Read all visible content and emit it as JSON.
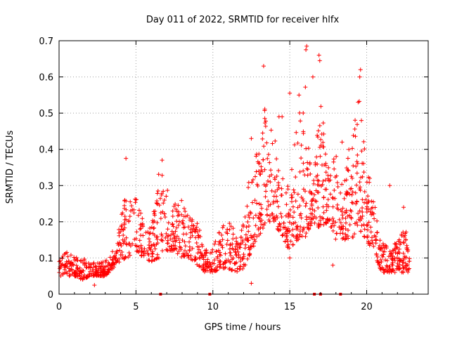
{
  "chart_data": {
    "type": "scatter",
    "title": "Day 011 of 2022, SRMTID for receiver hlfx",
    "xlabel": "GPS time / hours",
    "ylabel": "SRMTID / TECUs",
    "xlim": [
      0,
      24
    ],
    "ylim": [
      0,
      0.7
    ],
    "x_ticks": [
      0,
      5,
      10,
      15,
      20
    ],
    "x_tick_labels": [
      "0",
      "5",
      "10",
      "15",
      "20"
    ],
    "y_ticks": [
      0,
      0.1,
      0.2,
      0.3,
      0.4,
      0.5,
      0.6,
      0.7
    ],
    "y_tick_labels": [
      "0",
      "0.1",
      "0.2",
      "0.3",
      "0.4",
      "0.5",
      "0.6",
      "0.7"
    ],
    "grid": true,
    "marker": "plus",
    "color": "#ff0000",
    "zero_markers_x": [
      6.6,
      9.8,
      16.6,
      17.0,
      18.3
    ],
    "envelope": {
      "x": [
        0,
        0.5,
        1,
        1.5,
        2,
        2.5,
        3,
        3.5,
        4,
        4.3,
        4.6,
        5,
        5.5,
        6,
        6.5,
        7,
        7.5,
        8,
        8.5,
        9,
        9.5,
        10,
        10.5,
        11,
        11.5,
        12,
        12.5,
        13,
        13.5,
        14,
        14.5,
        15,
        15.5,
        16,
        16.5,
        17,
        17.5,
        18,
        18.5,
        19,
        19.5,
        20,
        20.5,
        21,
        21.5,
        22,
        22.5,
        22.8
      ],
      "low": [
        0.05,
        0.05,
        0.05,
        0.04,
        0.05,
        0.05,
        0.05,
        0.07,
        0.09,
        0.1,
        0.1,
        0.12,
        0.1,
        0.09,
        0.1,
        0.12,
        0.12,
        0.1,
        0.1,
        0.08,
        0.06,
        0.06,
        0.07,
        0.07,
        0.06,
        0.07,
        0.12,
        0.16,
        0.2,
        0.2,
        0.15,
        0.12,
        0.15,
        0.15,
        0.2,
        0.18,
        0.2,
        0.15,
        0.15,
        0.15,
        0.18,
        0.15,
        0.1,
        0.06,
        0.06,
        0.06,
        0.06,
        0.06
      ],
      "high": [
        0.09,
        0.12,
        0.11,
        0.1,
        0.09,
        0.09,
        0.09,
        0.12,
        0.2,
        0.3,
        0.26,
        0.28,
        0.2,
        0.18,
        0.36,
        0.3,
        0.25,
        0.26,
        0.22,
        0.2,
        0.14,
        0.13,
        0.18,
        0.22,
        0.16,
        0.2,
        0.38,
        0.42,
        0.55,
        0.45,
        0.35,
        0.3,
        0.5,
        0.58,
        0.3,
        0.55,
        0.35,
        0.4,
        0.3,
        0.45,
        0.55,
        0.4,
        0.25,
        0.15,
        0.15,
        0.14,
        0.2,
        0.12
      ]
    },
    "peaks": [
      {
        "x": 4.35,
        "y": 0.375
      },
      {
        "x": 6.7,
        "y": 0.37
      },
      {
        "x": 13.3,
        "y": 0.63
      },
      {
        "x": 16.1,
        "y": 0.685
      },
      {
        "x": 16.05,
        "y": 0.675
      },
      {
        "x": 16.5,
        "y": 0.6
      },
      {
        "x": 16.9,
        "y": 0.66
      },
      {
        "x": 16.95,
        "y": 0.645
      },
      {
        "x": 19.6,
        "y": 0.62
      },
      {
        "x": 19.55,
        "y": 0.6
      },
      {
        "x": 15.0,
        "y": 0.555
      },
      {
        "x": 15.6,
        "y": 0.55
      },
      {
        "x": 12.5,
        "y": 0.43
      },
      {
        "x": 14.3,
        "y": 0.49
      },
      {
        "x": 14.5,
        "y": 0.49
      },
      {
        "x": 18.4,
        "y": 0.42
      },
      {
        "x": 20.2,
        "y": 0.32
      },
      {
        "x": 21.5,
        "y": 0.3
      },
      {
        "x": 22.4,
        "y": 0.24
      },
      {
        "x": 17.8,
        "y": 0.08
      },
      {
        "x": 15.0,
        "y": 0.1
      },
      {
        "x": 12.5,
        "y": 0.03
      },
      {
        "x": 2.3,
        "y": 0.025
      }
    ]
  }
}
